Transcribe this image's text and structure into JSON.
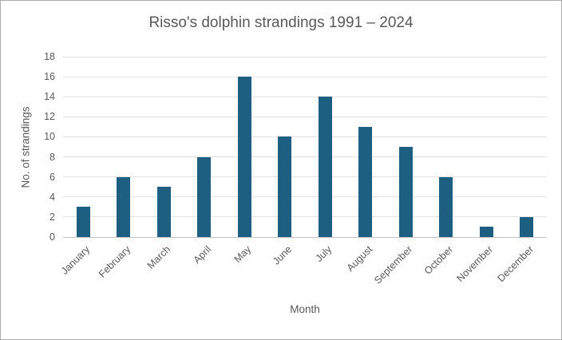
{
  "chart_data": {
    "type": "bar",
    "title": "Risso's dolphin strandings 1991 – 2024",
    "xlabel": "Month",
    "ylabel": "No. of strandings",
    "categories": [
      "January",
      "February",
      "March",
      "April",
      "May",
      "June",
      "July",
      "August",
      "September",
      "October",
      "November",
      "December"
    ],
    "values": [
      3,
      6,
      5,
      8,
      16,
      10,
      14,
      11,
      9,
      6,
      1,
      2
    ],
    "ylim": [
      0,
      18
    ],
    "yticks": [
      0,
      2,
      4,
      6,
      8,
      10,
      12,
      14,
      16,
      18
    ],
    "grid": true,
    "legend": "none",
    "colors": {
      "bar": "#1d5f80",
      "text": "#595959",
      "gridline": "#e2e2e2",
      "axis_line": "#c6c6c6",
      "frame_border": "#ababab",
      "background": "#ffffff"
    }
  }
}
